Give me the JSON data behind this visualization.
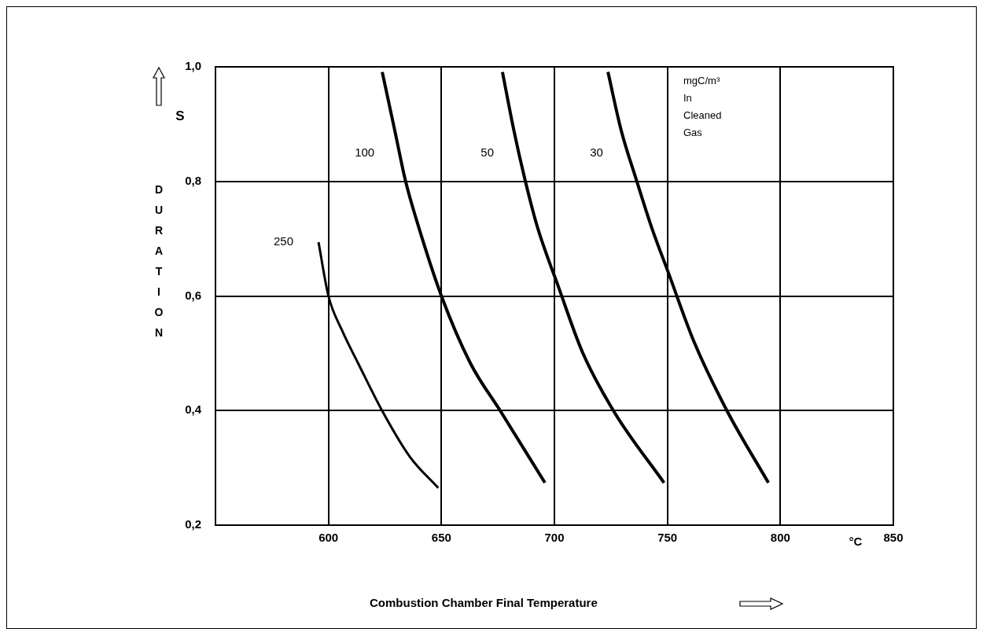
{
  "chart_data": {
    "type": "line",
    "xlabel": "Combustion Chamber Final Temperature",
    "ylabel": "DURATION",
    "xlim": [
      550,
      850
    ],
    "xticks": [
      600,
      650,
      700,
      750,
      800,
      850
    ],
    "ylim": [
      0.2,
      1.0
    ],
    "yticks": [
      {
        "value": 0.2,
        "label": "0,2"
      },
      {
        "value": 0.4,
        "label": "0,4"
      },
      {
        "value": 0.6,
        "label": "0,6"
      },
      {
        "value": 0.8,
        "label": "0,8"
      },
      {
        "value": 1.0,
        "label": "1,0"
      }
    ],
    "grid": true,
    "legend": false,
    "marker": "none",
    "line_style": "solid",
    "series": [
      {
        "name": "250",
        "color": "#000000",
        "x": [
          595.6,
          600,
          606,
          613.2,
          624,
          636.1,
          648.6
        ],
        "values": [
          0.694,
          0.6,
          0.54,
          0.482,
          0.398,
          0.319,
          0.265
        ]
      },
      {
        "name": "100",
        "color": "#000000",
        "x": [
          623.8,
          629.4,
          634.1,
          638.8,
          650,
          662.9,
          676.3,
          695.8
        ],
        "values": [
          0.991,
          0.888,
          0.801,
          0.735,
          0.6,
          0.482,
          0.398,
          0.274
        ]
      },
      {
        "name": "50",
        "color": "#000000",
        "x": [
          677,
          682,
          687.1,
          692.5,
          698.5,
          700.5,
          712.3,
          726.4,
          748.5
        ],
        "values": [
          0.991,
          0.89,
          0.801,
          0.72,
          0.651,
          0.63,
          0.503,
          0.398,
          0.274
        ]
      },
      {
        "name": "30",
        "color": "#000000",
        "x": [
          723.7,
          729.5,
          736.4,
          743,
          750.5,
          761.9,
          776.6,
          794.7
        ],
        "values": [
          0.991,
          0.89,
          0.801,
          0.72,
          0.64,
          0.519,
          0.398,
          0.274
        ]
      }
    ],
    "annotations": [
      "mgC/m³ In Cleaned Gas",
      "S",
      "°C"
    ]
  }
}
